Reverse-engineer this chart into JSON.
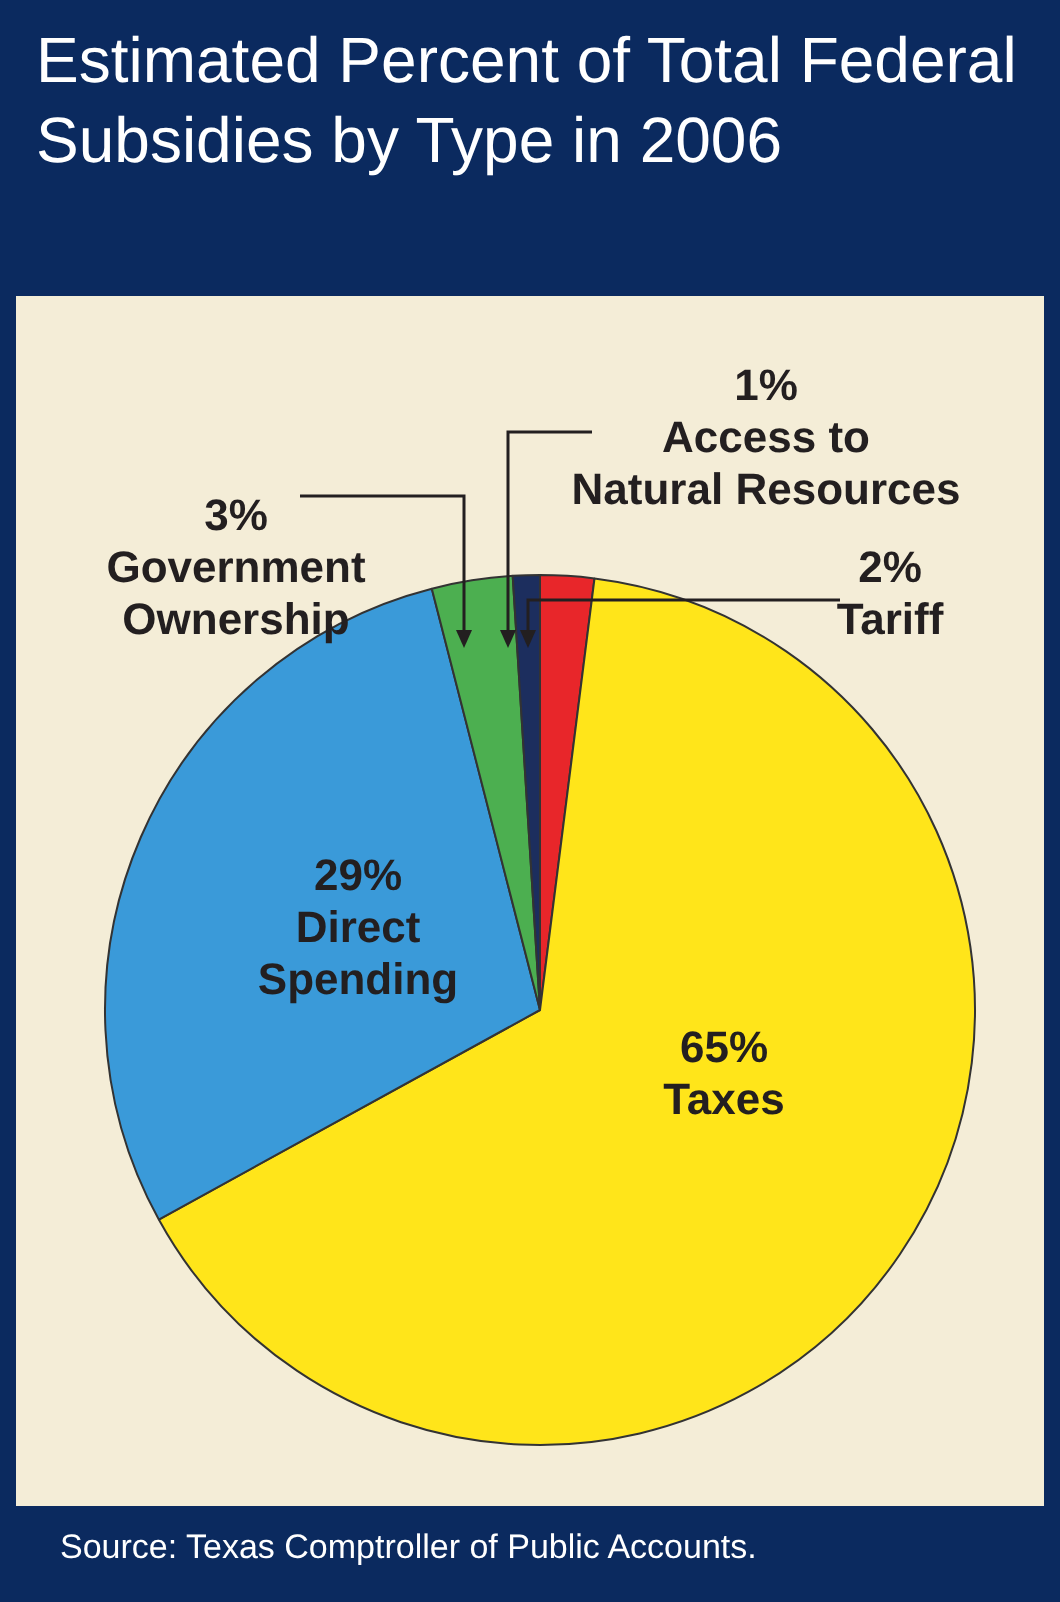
{
  "chart_data": {
    "type": "pie",
    "title": "Estimated Percent of Total Federal Subsidies by Type in 2006",
    "categories": [
      "Tariff",
      "Taxes",
      "Direct Spending",
      "Government Ownership",
      "Access to Natural Resources"
    ],
    "values": [
      2,
      65,
      29,
      3,
      1
    ],
    "colors": [
      "#e8262a",
      "#ffe51a",
      "#3a9ad9",
      "#4caf50",
      "#1c2e5e"
    ],
    "value_labels": [
      "2%",
      "65%",
      "29%",
      "3%",
      "1%"
    ],
    "legend": false,
    "annotations": [
      "Source: Texas Comptroller of Public Accounts."
    ]
  }
}
